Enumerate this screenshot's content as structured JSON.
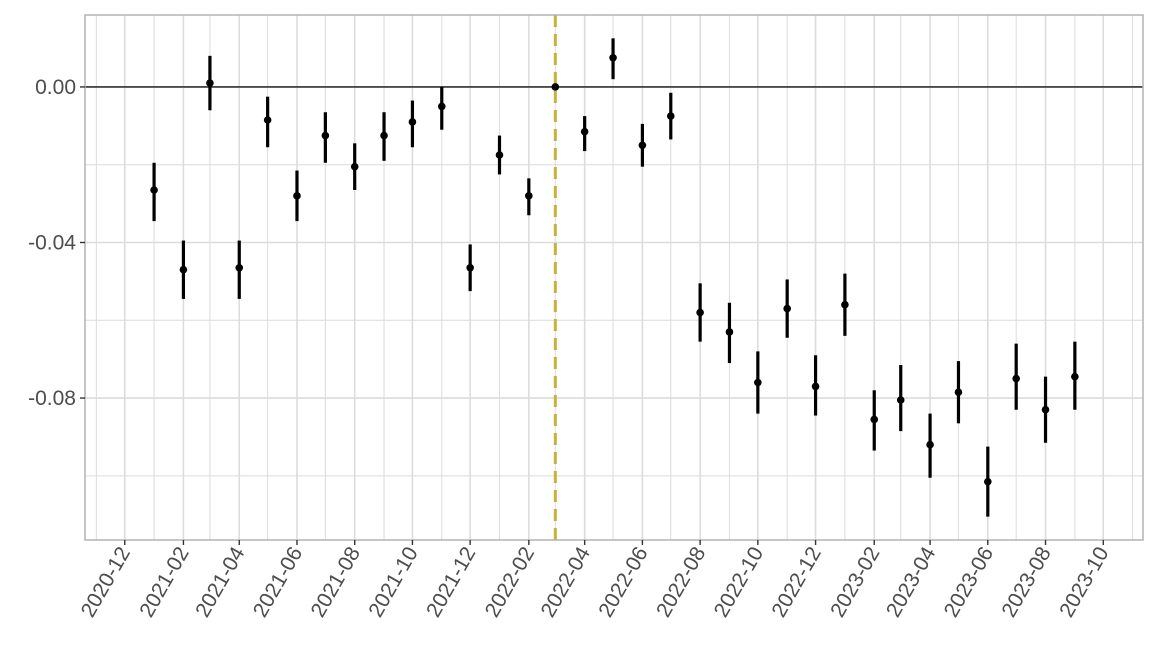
{
  "chart_data": {
    "type": "scatter",
    "title": "",
    "xlabel": "",
    "ylabel": "",
    "y_tick_labels": [
      "0.00",
      "-0.04",
      "-0.08"
    ],
    "y_tick_values": [
      0.0,
      -0.04,
      -0.08
    ],
    "y_minor_values": [
      -0.02,
      -0.06,
      -0.1
    ],
    "ylim": [
      -0.1165,
      0.0185
    ],
    "x_tick_labels": [
      "2020-12",
      "2021-02",
      "2021-04",
      "2021-06",
      "2021-08",
      "2021-10",
      "2021-12",
      "2022-02",
      "2022-04",
      "2022-06",
      "2022-08",
      "2022-10",
      "2022-12",
      "2023-02",
      "2023-04",
      "2023-06",
      "2023-08",
      "2023-10"
    ],
    "xlim": [
      "2020-10-20",
      "2023-11-12"
    ],
    "reference_hline": 0.0,
    "reference_vline": "2022-03",
    "grid": true,
    "colors": {
      "points": "#000000",
      "vline": "#c9b23a",
      "grid": "#dcdcdc",
      "panel_border": "#b3b3b3",
      "hline": "#333333"
    },
    "points": [
      {
        "x": "2021-01",
        "y": -0.0265,
        "lo": -0.0345,
        "hi": -0.0195
      },
      {
        "x": "2021-02",
        "y": -0.047,
        "lo": -0.0545,
        "hi": -0.0395
      },
      {
        "x": "2021-03",
        "y": 0.001,
        "lo": -0.006,
        "hi": 0.008
      },
      {
        "x": "2021-04",
        "y": -0.0465,
        "lo": -0.0545,
        "hi": -0.0395
      },
      {
        "x": "2021-05",
        "y": -0.0085,
        "lo": -0.0155,
        "hi": -0.0025
      },
      {
        "x": "2021-06",
        "y": -0.028,
        "lo": -0.0345,
        "hi": -0.0215
      },
      {
        "x": "2021-07",
        "y": -0.0125,
        "lo": -0.0195,
        "hi": -0.0065
      },
      {
        "x": "2021-08",
        "y": -0.0205,
        "lo": -0.0265,
        "hi": -0.0145
      },
      {
        "x": "2021-09",
        "y": -0.0125,
        "lo": -0.019,
        "hi": -0.0065
      },
      {
        "x": "2021-10",
        "y": -0.009,
        "lo": -0.0155,
        "hi": -0.0035
      },
      {
        "x": "2021-11",
        "y": -0.005,
        "lo": -0.011,
        "hi": 0.0
      },
      {
        "x": "2021-12",
        "y": -0.0465,
        "lo": -0.0525,
        "hi": -0.0405
      },
      {
        "x": "2022-01",
        "y": -0.0175,
        "lo": -0.0225,
        "hi": -0.0125
      },
      {
        "x": "2022-02",
        "y": -0.028,
        "lo": -0.033,
        "hi": -0.0235
      },
      {
        "x": "2022-03",
        "y": 0.0,
        "lo": 0.0,
        "hi": 0.0
      },
      {
        "x": "2022-04",
        "y": -0.0115,
        "lo": -0.0165,
        "hi": -0.0075
      },
      {
        "x": "2022-05",
        "y": 0.0075,
        "lo": 0.002,
        "hi": 0.0125
      },
      {
        "x": "2022-06",
        "y": -0.015,
        "lo": -0.0205,
        "hi": -0.0095
      },
      {
        "x": "2022-07",
        "y": -0.0075,
        "lo": -0.0135,
        "hi": -0.0015
      },
      {
        "x": "2022-08",
        "y": -0.058,
        "lo": -0.0655,
        "hi": -0.0505
      },
      {
        "x": "2022-09",
        "y": -0.063,
        "lo": -0.071,
        "hi": -0.0555
      },
      {
        "x": "2022-10",
        "y": -0.076,
        "lo": -0.084,
        "hi": -0.068
      },
      {
        "x": "2022-11",
        "y": -0.057,
        "lo": -0.0645,
        "hi": -0.0495
      },
      {
        "x": "2022-12",
        "y": -0.077,
        "lo": -0.0845,
        "hi": -0.069
      },
      {
        "x": "2023-01",
        "y": -0.056,
        "lo": -0.064,
        "hi": -0.048
      },
      {
        "x": "2023-02",
        "y": -0.0855,
        "lo": -0.0935,
        "hi": -0.078
      },
      {
        "x": "2023-03",
        "y": -0.0805,
        "lo": -0.0885,
        "hi": -0.0715
      },
      {
        "x": "2023-04",
        "y": -0.092,
        "lo": -0.1005,
        "hi": -0.084
      },
      {
        "x": "2023-05",
        "y": -0.0785,
        "lo": -0.0865,
        "hi": -0.0705
      },
      {
        "x": "2023-06",
        "y": -0.1015,
        "lo": -0.1105,
        "hi": -0.0925
      },
      {
        "x": "2023-07",
        "y": -0.075,
        "lo": -0.083,
        "hi": -0.066
      },
      {
        "x": "2023-08",
        "y": -0.083,
        "lo": -0.0915,
        "hi": -0.0745
      },
      {
        "x": "2023-09",
        "y": -0.0745,
        "lo": -0.083,
        "hi": -0.0655
      }
    ]
  }
}
